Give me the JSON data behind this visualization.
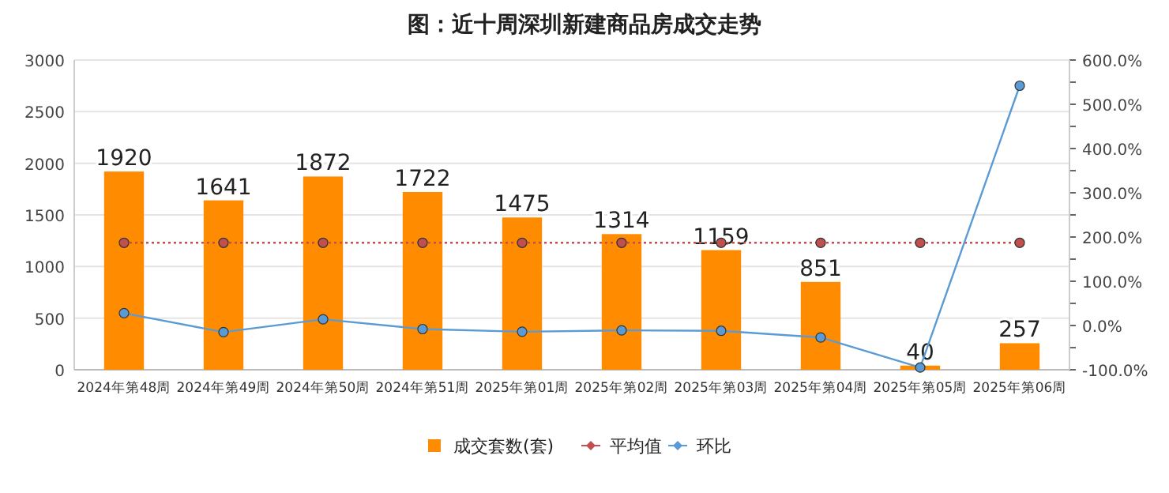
{
  "chart_data": {
    "type": "bar",
    "title": "图：近十周深圳新建商品房成交走势",
    "categories": [
      "2024年第48周",
      "2024年第49周",
      "2024年第50周",
      "2024年第51周",
      "2025年第01周",
      "2025年第02周",
      "2025年第03周",
      "2025年第04周",
      "2025年第05周",
      "2025年第06周"
    ],
    "series": [
      {
        "name": "成交套数(套)",
        "color": "#ff8c00",
        "values": [
          1920,
          1641,
          1872,
          1722,
          1475,
          1314,
          1159,
          851,
          40,
          257
        ],
        "value_labels": [
          "1920",
          "1641",
          "1872",
          "1722",
          "1475",
          "1314",
          "1159",
          "851",
          "40",
          "257"
        ]
      },
      {
        "name": "平均值",
        "type": "line",
        "color": "#c0504d",
        "line_style": "dotted",
        "values": [
          1230,
          1230,
          1230,
          1230,
          1230,
          1230,
          1230,
          1230,
          1230,
          1230
        ]
      },
      {
        "name": "环比",
        "type": "line",
        "axis": "y2",
        "color": "#5b9bd5",
        "line_style": "solid",
        "values": [
          28,
          -15,
          14,
          -8,
          -14,
          -11,
          -12,
          -27,
          -95,
          542
        ]
      }
    ],
    "marker": "circle",
    "grid": "y",
    "legend": "bottom",
    "ylim": [
      0,
      3000
    ],
    "yticks": [
      0,
      500,
      1000,
      1500,
      2000,
      2500,
      3000
    ],
    "y2lim": [
      -100,
      600
    ],
    "y2ticks": [
      {
        "value": -100,
        "label": "-100.0%"
      },
      {
        "value": -50,
        "label": null
      },
      {
        "value": 0,
        "label": "0.0%"
      },
      {
        "value": 50,
        "label": null
      },
      {
        "value": 100,
        "label": "100.0%"
      },
      {
        "value": 150,
        "label": null
      },
      {
        "value": 200,
        "label": "200.0%"
      },
      {
        "value": 250,
        "label": null
      },
      {
        "value": 300,
        "label": "300.0%"
      },
      {
        "value": 350,
        "label": null
      },
      {
        "value": 400,
        "label": "400.0%"
      },
      {
        "value": 450,
        "label": null
      },
      {
        "value": 500,
        "label": "500.0%"
      },
      {
        "value": 550,
        "label": null
      },
      {
        "value": 600,
        "label": "600.0%"
      }
    ]
  }
}
